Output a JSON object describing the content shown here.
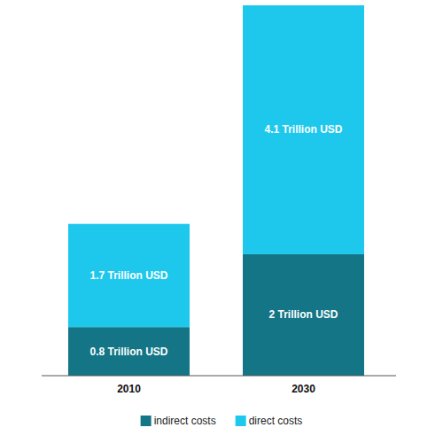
{
  "chart_data": {
    "type": "bar",
    "stacked": true,
    "categories": [
      "2010",
      "2030"
    ],
    "series": [
      {
        "name": "indirect costs",
        "color": "#137586",
        "values": [
          0.8,
          2
        ],
        "value_labels": [
          "0.8 Trillion USD",
          "2 Trillion USD"
        ]
      },
      {
        "name": "direct costs",
        "color": "#1ec8ec",
        "values": [
          1.7,
          4.1
        ],
        "value_labels": [
          "1.7 Trillion USD",
          "4.1 Trillion USD"
        ]
      }
    ],
    "ylim": [
      0,
      6.1
    ],
    "data_labels": true,
    "tick_labels": "x",
    "legend": "bottom"
  }
}
